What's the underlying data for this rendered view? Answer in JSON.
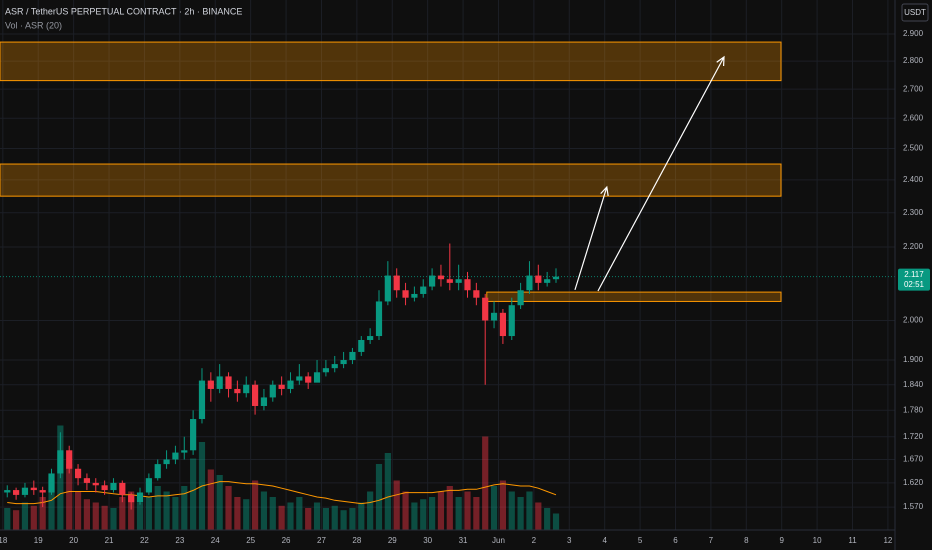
{
  "chart_data": {
    "type": "candlestick",
    "title": "ASR / TetherUS PERPETUAL CONTRACT · 2h · BINANCE",
    "volume_label": "Vol · ASR (20)",
    "currency": "USDT",
    "countdown": "02:51",
    "log_scale": true,
    "grid": true,
    "up_color": "#089981",
    "down_color": "#f23645",
    "zone_color": "#ff9800",
    "arrow_color": "#ffffff",
    "volume_ma_color": "#ff9800",
    "ylim": [
      1.524,
      3.031
    ],
    "yticks": [
      {
        "value": 2.9,
        "label": "2.900"
      },
      {
        "value": 2.8,
        "label": "2.800"
      },
      {
        "value": 2.7,
        "label": "2.700"
      },
      {
        "value": 2.6,
        "label": "2.600"
      },
      {
        "value": 2.5,
        "label": "2.500"
      },
      {
        "value": 2.4,
        "label": "2.400"
      },
      {
        "value": 2.3,
        "label": "2.300"
      },
      {
        "value": 2.2,
        "label": "2.200"
      },
      {
        "value": 2.0,
        "label": "2.000"
      },
      {
        "value": 1.9,
        "label": "1.900"
      },
      {
        "value": 1.84,
        "label": "1.840"
      },
      {
        "value": 1.78,
        "label": "1.780"
      },
      {
        "value": 1.72,
        "label": "1.720"
      },
      {
        "value": 1.67,
        "label": "1.670"
      },
      {
        "value": 1.62,
        "label": "1.620"
      },
      {
        "value": 1.57,
        "label": "1.570"
      }
    ],
    "xlim": [
      -0.08,
      25.2
    ],
    "xticks": [
      {
        "value": 0,
        "label": "18"
      },
      {
        "value": 1,
        "label": "19"
      },
      {
        "value": 2,
        "label": "20"
      },
      {
        "value": 3,
        "label": "21"
      },
      {
        "value": 4,
        "label": "22"
      },
      {
        "value": 5,
        "label": "23"
      },
      {
        "value": 6,
        "label": "24"
      },
      {
        "value": 7,
        "label": "25"
      },
      {
        "value": 8,
        "label": "26"
      },
      {
        "value": 9,
        "label": "27"
      },
      {
        "value": 10,
        "label": "28"
      },
      {
        "value": 11,
        "label": "29"
      },
      {
        "value": 12,
        "label": "30"
      },
      {
        "value": 13,
        "label": "31"
      },
      {
        "value": 14,
        "label": "Jun"
      },
      {
        "value": 15,
        "label": "2"
      },
      {
        "value": 16,
        "label": "3"
      },
      {
        "value": 17,
        "label": "4"
      },
      {
        "value": 18,
        "label": "5"
      },
      {
        "value": 19,
        "label": "6"
      },
      {
        "value": 20,
        "label": "7"
      },
      {
        "value": 21,
        "label": "8"
      },
      {
        "value": 22,
        "label": "9"
      },
      {
        "value": 23,
        "label": "10"
      },
      {
        "value": 24,
        "label": "11"
      },
      {
        "value": 25,
        "label": "12"
      }
    ],
    "vlim": [
      0,
      100
    ],
    "x": [
      0.125,
      0.375,
      0.625,
      0.875,
      1.125,
      1.375,
      1.625,
      1.875,
      2.125,
      2.375,
      2.625,
      2.875,
      3.125,
      3.375,
      3.625,
      3.875,
      4.125,
      4.375,
      4.625,
      4.875,
      5.125,
      5.375,
      5.625,
      5.875,
      6.125,
      6.375,
      6.625,
      6.875,
      7.125,
      7.375,
      7.625,
      7.875,
      8.125,
      8.375,
      8.625,
      8.875,
      9.125,
      9.375,
      9.625,
      9.875,
      10.125,
      10.375,
      10.625,
      10.875,
      11.125,
      11.375,
      11.625,
      11.875,
      12.125,
      12.375,
      12.625,
      12.875,
      13.125,
      13.375,
      13.625,
      13.875,
      14.125,
      14.375,
      14.625,
      14.875,
      15.125,
      15.375,
      15.625
    ],
    "open": [
      1.6,
      1.605,
      1.595,
      1.61,
      1.605,
      1.6,
      1.64,
      1.69,
      1.65,
      1.63,
      1.62,
      1.615,
      1.605,
      1.62,
      1.595,
      1.58,
      1.6,
      1.63,
      1.66,
      1.67,
      1.685,
      1.69,
      1.76,
      1.85,
      1.83,
      1.86,
      1.83,
      1.82,
      1.84,
      1.79,
      1.81,
      1.84,
      1.83,
      1.85,
      1.86,
      1.845,
      1.87,
      1.88,
      1.89,
      1.9,
      1.92,
      1.95,
      1.96,
      2.05,
      2.12,
      2.08,
      2.06,
      2.07,
      2.09,
      2.12,
      2.11,
      2.1,
      2.11,
      2.08,
      2.06,
      2.0,
      2.02,
      1.96,
      2.04,
      2.08,
      2.12,
      2.1,
      2.11
    ],
    "high": [
      1.615,
      1.61,
      1.62,
      1.625,
      1.612,
      1.65,
      1.73,
      1.7,
      1.66,
      1.64,
      1.63,
      1.625,
      1.63,
      1.625,
      1.6,
      1.61,
      1.64,
      1.67,
      1.69,
      1.7,
      1.72,
      1.78,
      1.88,
      1.87,
      1.89,
      1.87,
      1.85,
      1.86,
      1.85,
      1.83,
      1.85,
      1.86,
      1.87,
      1.89,
      1.87,
      1.9,
      1.9,
      1.91,
      1.92,
      1.93,
      1.96,
      1.98,
      2.08,
      2.16,
      2.14,
      2.1,
      2.09,
      2.11,
      2.14,
      2.15,
      2.21,
      2.15,
      2.13,
      2.1,
      2.07,
      2.05,
      2.03,
      2.06,
      2.1,
      2.16,
      2.15,
      2.13,
      2.14
    ],
    "low": [
      1.59,
      1.585,
      1.59,
      1.595,
      1.57,
      1.595,
      1.63,
      1.64,
      1.615,
      1.605,
      1.6,
      1.595,
      1.6,
      1.58,
      1.565,
      1.575,
      1.595,
      1.625,
      1.65,
      1.66,
      1.67,
      1.68,
      1.75,
      1.8,
      1.82,
      1.81,
      1.8,
      1.81,
      1.77,
      1.78,
      1.8,
      1.815,
      1.82,
      1.84,
      1.83,
      1.85,
      1.86,
      1.87,
      1.88,
      1.89,
      1.91,
      1.94,
      1.95,
      2.04,
      2.06,
      2.04,
      2.05,
      2.06,
      2.08,
      2.09,
      2.08,
      2.08,
      2.06,
      2.04,
      1.84,
      1.98,
      1.94,
      1.95,
      2.03,
      2.07,
      2.08,
      2.09,
      2.1
    ],
    "close": [
      1.605,
      1.595,
      1.61,
      1.605,
      1.6,
      1.64,
      1.69,
      1.65,
      1.63,
      1.62,
      1.615,
      1.605,
      1.62,
      1.595,
      1.58,
      1.6,
      1.63,
      1.66,
      1.67,
      1.685,
      1.69,
      1.76,
      1.85,
      1.83,
      1.86,
      1.83,
      1.82,
      1.84,
      1.79,
      1.81,
      1.84,
      1.83,
      1.85,
      1.86,
      1.845,
      1.87,
      1.88,
      1.89,
      1.9,
      1.92,
      1.95,
      1.96,
      2.05,
      2.12,
      2.08,
      2.06,
      2.07,
      2.09,
      2.12,
      2.11,
      2.1,
      2.11,
      2.08,
      2.06,
      2.0,
      2.02,
      1.96,
      2.04,
      2.08,
      2.12,
      2.1,
      2.11,
      2.117
    ],
    "volume": [
      20,
      18,
      25,
      22,
      30,
      45,
      95,
      60,
      35,
      28,
      25,
      22,
      20,
      30,
      35,
      25,
      30,
      40,
      35,
      30,
      40,
      65,
      80,
      55,
      50,
      40,
      30,
      28,
      45,
      35,
      30,
      22,
      25,
      30,
      20,
      25,
      20,
      22,
      18,
      20,
      25,
      35,
      60,
      70,
      45,
      35,
      25,
      28,
      30,
      35,
      40,
      30,
      35,
      30,
      85,
      40,
      45,
      35,
      30,
      35,
      25,
      20,
      15
    ],
    "volume_ma": [
      25,
      24,
      24,
      24,
      25,
      27,
      33,
      35,
      35,
      35,
      35,
      34,
      33,
      32,
      32,
      31,
      30,
      31,
      31,
      32,
      33,
      36,
      40,
      42,
      44,
      44,
      43,
      42,
      42,
      41,
      40,
      38,
      36,
      34,
      32,
      30,
      29,
      27,
      26,
      25,
      24,
      25,
      27,
      30,
      32,
      34,
      34,
      34,
      34,
      35,
      36,
      36,
      37,
      37,
      39,
      41,
      42,
      41,
      40,
      40,
      38,
      35,
      32
    ],
    "drawings": {
      "zones": [
        {
          "x": [
            -0.08,
            21.98
          ],
          "price": [
            2.73,
            2.87
          ]
        },
        {
          "x": [
            -0.08,
            21.98
          ],
          "price": [
            2.35,
            2.45
          ]
        },
        {
          "x": [
            13.67,
            21.98
          ],
          "price": [
            2.05,
            2.075
          ]
        }
      ],
      "arrows": [
        {
          "x": [
            16.16,
            17.06
          ],
          "price": [
            2.081,
            2.378
          ]
        },
        {
          "x": [
            16.81,
            20.37
          ],
          "price": [
            2.078,
            2.815
          ]
        }
      ]
    }
  }
}
